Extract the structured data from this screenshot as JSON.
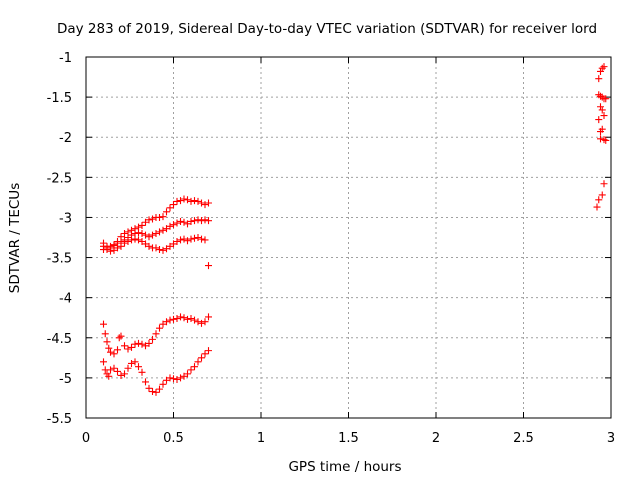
{
  "chart_data": {
    "type": "scatter",
    "title": "Day 283 of 2019, Sidereal Day-to-day VTEC variation (SDTVAR) for receiver lord",
    "xlabel": "GPS time / hours",
    "ylabel": "SDTVAR / TECUs",
    "xlim": [
      0,
      3
    ],
    "ylim": [
      -5.5,
      -1
    ],
    "xticks": [
      0,
      0.5,
      1,
      1.5,
      2,
      2.5,
      3
    ],
    "xtick_labels": [
      "0",
      "0.5",
      "1",
      "1.5",
      "2",
      "2.5",
      "3"
    ],
    "yticks": [
      -1,
      -1.5,
      -2,
      -2.5,
      -3,
      -3.5,
      -4,
      -4.5,
      -5,
      -5.5
    ],
    "ytick_labels": [
      "-1",
      "-1.5",
      "-2",
      "-2.5",
      "-3",
      "-3.5",
      "-4",
      "-4.5",
      "-5",
      "-5.5"
    ],
    "grid": true,
    "marker": "+",
    "marker_color": "#ff0000",
    "series": [
      {
        "points": [
          [
            0.1,
            -3.32
          ],
          [
            0.12,
            -3.36
          ],
          [
            0.14,
            -3.38
          ],
          [
            0.16,
            -3.35
          ],
          [
            0.18,
            -3.3
          ],
          [
            0.2,
            -3.24
          ],
          [
            0.22,
            -3.2
          ],
          [
            0.24,
            -3.18
          ],
          [
            0.26,
            -3.16
          ],
          [
            0.28,
            -3.14
          ],
          [
            0.3,
            -3.12
          ],
          [
            0.32,
            -3.1
          ],
          [
            0.34,
            -3.06
          ],
          [
            0.36,
            -3.03
          ],
          [
            0.38,
            -3.02
          ],
          [
            0.4,
            -3.0
          ],
          [
            0.42,
            -3.0
          ],
          [
            0.44,
            -2.99
          ],
          [
            0.46,
            -2.93
          ],
          [
            0.48,
            -2.88
          ],
          [
            0.5,
            -2.84
          ],
          [
            0.52,
            -2.8
          ],
          [
            0.54,
            -2.79
          ],
          [
            0.56,
            -2.77
          ],
          [
            0.58,
            -2.78
          ],
          [
            0.6,
            -2.8
          ],
          [
            0.62,
            -2.79
          ],
          [
            0.64,
            -2.8
          ],
          [
            0.66,
            -2.82
          ],
          [
            0.68,
            -2.84
          ],
          [
            0.7,
            -2.82
          ]
        ]
      },
      {
        "points": [
          [
            0.1,
            -3.4
          ],
          [
            0.12,
            -3.38
          ],
          [
            0.14,
            -3.36
          ],
          [
            0.16,
            -3.34
          ],
          [
            0.18,
            -3.32
          ],
          [
            0.2,
            -3.3
          ],
          [
            0.22,
            -3.28
          ],
          [
            0.24,
            -3.25
          ],
          [
            0.26,
            -3.22
          ],
          [
            0.28,
            -3.2
          ],
          [
            0.3,
            -3.19
          ],
          [
            0.32,
            -3.2
          ],
          [
            0.34,
            -3.22
          ],
          [
            0.36,
            -3.24
          ],
          [
            0.38,
            -3.22
          ],
          [
            0.4,
            -3.2
          ],
          [
            0.42,
            -3.18
          ],
          [
            0.44,
            -3.16
          ],
          [
            0.46,
            -3.14
          ],
          [
            0.48,
            -3.11
          ],
          [
            0.5,
            -3.09
          ],
          [
            0.52,
            -3.07
          ],
          [
            0.54,
            -3.05
          ],
          [
            0.56,
            -3.06
          ],
          [
            0.58,
            -3.08
          ],
          [
            0.6,
            -3.05
          ],
          [
            0.62,
            -3.04
          ],
          [
            0.64,
            -3.03
          ],
          [
            0.66,
            -3.04
          ],
          [
            0.68,
            -3.03
          ],
          [
            0.7,
            -3.04
          ]
        ]
      },
      {
        "points": [
          [
            0.1,
            -3.36
          ],
          [
            0.12,
            -3.4
          ],
          [
            0.14,
            -3.42
          ],
          [
            0.16,
            -3.41
          ],
          [
            0.18,
            -3.38
          ],
          [
            0.2,
            -3.36
          ],
          [
            0.22,
            -3.32
          ],
          [
            0.24,
            -3.3
          ],
          [
            0.26,
            -3.28
          ],
          [
            0.28,
            -3.27
          ],
          [
            0.3,
            -3.28
          ],
          [
            0.32,
            -3.3
          ],
          [
            0.34,
            -3.33
          ],
          [
            0.36,
            -3.36
          ],
          [
            0.38,
            -3.38
          ],
          [
            0.4,
            -3.38
          ],
          [
            0.42,
            -3.4
          ],
          [
            0.44,
            -3.41
          ],
          [
            0.46,
            -3.39
          ],
          [
            0.48,
            -3.36
          ],
          [
            0.5,
            -3.33
          ],
          [
            0.52,
            -3.3
          ],
          [
            0.54,
            -3.28
          ],
          [
            0.56,
            -3.27
          ],
          [
            0.58,
            -3.29
          ],
          [
            0.6,
            -3.27
          ],
          [
            0.62,
            -3.26
          ],
          [
            0.64,
            -3.25
          ],
          [
            0.66,
            -3.27
          ],
          [
            0.68,
            -3.28
          ],
          [
            0.7,
            -3.6
          ]
        ]
      },
      {
        "points": [
          [
            0.1,
            -4.33
          ],
          [
            0.11,
            -4.45
          ],
          [
            0.12,
            -4.55
          ],
          [
            0.13,
            -4.63
          ],
          [
            0.14,
            -4.68
          ],
          [
            0.16,
            -4.7
          ],
          [
            0.18,
            -4.65
          ],
          [
            0.19,
            -4.5
          ],
          [
            0.2,
            -4.48
          ],
          [
            0.22,
            -4.6
          ],
          [
            0.24,
            -4.64
          ],
          [
            0.26,
            -4.62
          ],
          [
            0.28,
            -4.58
          ],
          [
            0.3,
            -4.57
          ],
          [
            0.32,
            -4.58
          ],
          [
            0.34,
            -4.6
          ],
          [
            0.36,
            -4.57
          ],
          [
            0.38,
            -4.52
          ],
          [
            0.4,
            -4.45
          ],
          [
            0.42,
            -4.38
          ],
          [
            0.44,
            -4.33
          ],
          [
            0.46,
            -4.3
          ],
          [
            0.48,
            -4.28
          ],
          [
            0.5,
            -4.27
          ],
          [
            0.52,
            -4.26
          ],
          [
            0.54,
            -4.24
          ],
          [
            0.56,
            -4.25
          ],
          [
            0.58,
            -4.27
          ],
          [
            0.6,
            -4.26
          ],
          [
            0.62,
            -4.28
          ],
          [
            0.64,
            -4.3
          ],
          [
            0.66,
            -4.32
          ],
          [
            0.68,
            -4.3
          ],
          [
            0.7,
            -4.24
          ]
        ]
      },
      {
        "points": [
          [
            0.1,
            -4.8
          ],
          [
            0.11,
            -4.9
          ],
          [
            0.12,
            -4.95
          ],
          [
            0.13,
            -4.98
          ],
          [
            0.14,
            -4.9
          ],
          [
            0.16,
            -4.88
          ],
          [
            0.18,
            -4.92
          ],
          [
            0.2,
            -4.97
          ],
          [
            0.22,
            -4.95
          ],
          [
            0.24,
            -4.88
          ],
          [
            0.26,
            -4.82
          ],
          [
            0.28,
            -4.8
          ],
          [
            0.3,
            -4.86
          ],
          [
            0.32,
            -4.93
          ],
          [
            0.34,
            -5.05
          ],
          [
            0.36,
            -5.13
          ],
          [
            0.38,
            -5.17
          ],
          [
            0.4,
            -5.18
          ],
          [
            0.42,
            -5.14
          ],
          [
            0.44,
            -5.08
          ],
          [
            0.46,
            -5.03
          ],
          [
            0.48,
            -5.0
          ],
          [
            0.5,
            -5.01
          ],
          [
            0.52,
            -5.02
          ],
          [
            0.54,
            -5.0
          ],
          [
            0.56,
            -4.98
          ],
          [
            0.58,
            -4.95
          ],
          [
            0.6,
            -4.9
          ],
          [
            0.62,
            -4.86
          ],
          [
            0.64,
            -4.8
          ],
          [
            0.66,
            -4.75
          ],
          [
            0.68,
            -4.7
          ],
          [
            0.7,
            -4.66
          ]
        ]
      },
      {
        "points": [
          [
            2.93,
            -1.27
          ],
          [
            2.94,
            -1.18
          ],
          [
            2.95,
            -1.14
          ],
          [
            2.96,
            -1.12
          ],
          [
            2.93,
            -1.47
          ],
          [
            2.94,
            -1.49
          ],
          [
            2.95,
            -1.5
          ],
          [
            2.96,
            -1.52
          ],
          [
            2.97,
            -1.52
          ],
          [
            2.94,
            -1.62
          ],
          [
            2.95,
            -1.66
          ],
          [
            2.93,
            -1.78
          ],
          [
            2.96,
            -1.73
          ],
          [
            2.94,
            -1.93
          ],
          [
            2.95,
            -1.9
          ],
          [
            2.94,
            -2.02
          ],
          [
            2.96,
            -2.03
          ],
          [
            2.97,
            -2.04
          ],
          [
            2.92,
            -2.87
          ],
          [
            2.93,
            -2.78
          ],
          [
            2.95,
            -2.72
          ],
          [
            2.96,
            -2.58
          ]
        ]
      }
    ]
  }
}
